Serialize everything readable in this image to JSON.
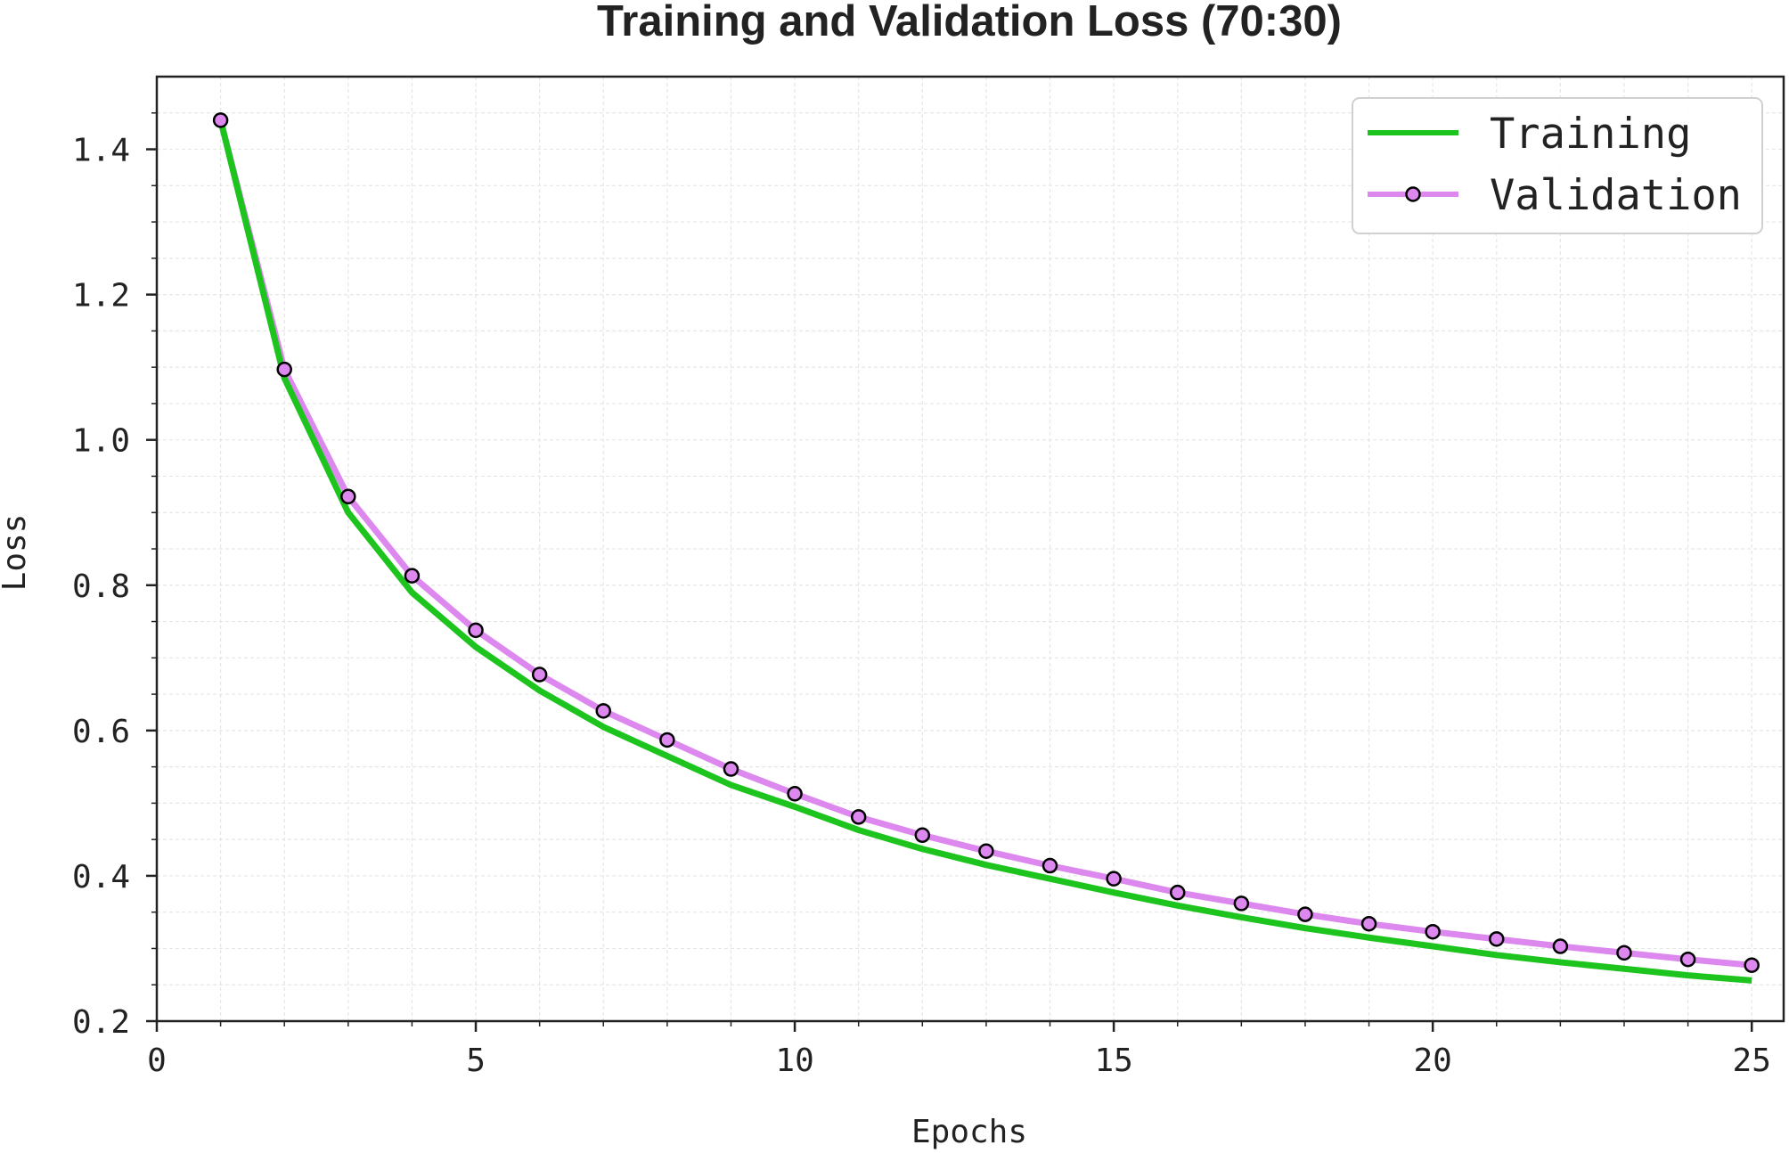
{
  "chart_data": {
    "type": "line",
    "title": "Training and Validation Loss (70:30)",
    "xlabel": "Epochs",
    "ylabel": "Loss",
    "xlim": [
      0,
      25.5
    ],
    "ylim": [
      0.2,
      1.5
    ],
    "xticks": [
      "0",
      "5",
      "10",
      "15",
      "20",
      "25"
    ],
    "yticks": [
      "0.2",
      "0.4",
      "0.6",
      "0.8",
      "1.0",
      "1.2",
      "1.4"
    ],
    "grid": true,
    "legend_position": "top-right",
    "x": [
      1,
      2,
      3,
      4,
      5,
      6,
      7,
      8,
      9,
      10,
      11,
      12,
      13,
      14,
      15,
      16,
      17,
      18,
      19,
      20,
      21,
      22,
      23,
      24,
      25
    ],
    "series": [
      {
        "name": "Training",
        "color": "#1dc41d",
        "marker": "none",
        "values": [
          1.44,
          1.085,
          0.9,
          0.79,
          0.715,
          0.655,
          0.605,
          0.565,
          0.525,
          0.495,
          0.463,
          0.437,
          0.415,
          0.396,
          0.377,
          0.359,
          0.343,
          0.328,
          0.315,
          0.303,
          0.291,
          0.281,
          0.272,
          0.263,
          0.256
        ]
      },
      {
        "name": "Validation",
        "color": "#dd88ee",
        "marker": "circle",
        "values": [
          1.44,
          1.097,
          0.922,
          0.813,
          0.738,
          0.677,
          0.627,
          0.587,
          0.547,
          0.513,
          0.481,
          0.456,
          0.434,
          0.414,
          0.396,
          0.377,
          0.362,
          0.347,
          0.334,
          0.323,
          0.313,
          0.303,
          0.294,
          0.285,
          0.277
        ]
      }
    ]
  }
}
